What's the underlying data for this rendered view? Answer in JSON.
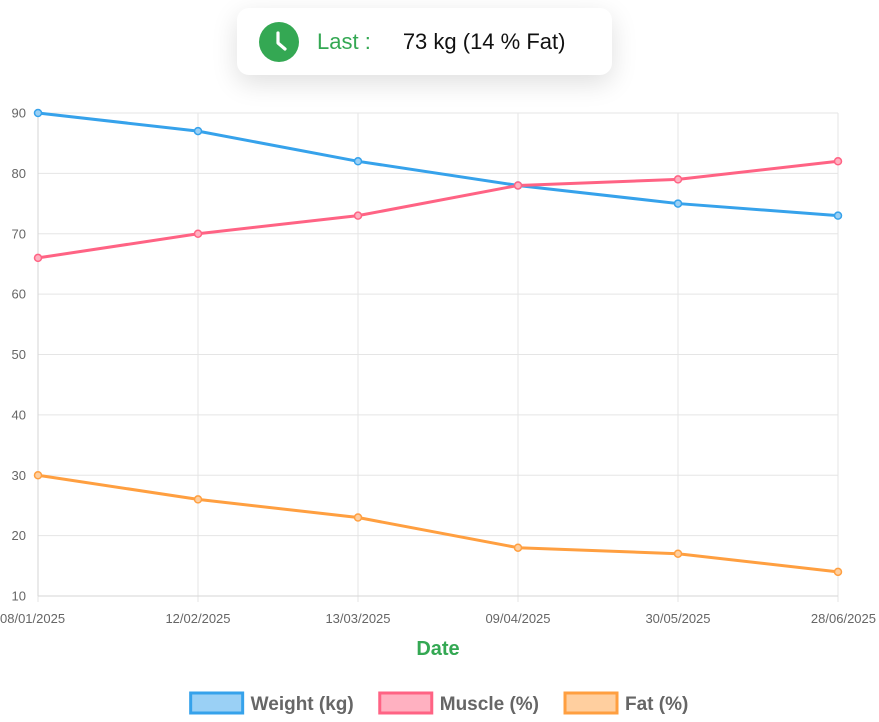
{
  "summary": {
    "label": "Last :",
    "value": "73 kg (14 % Fat)",
    "icon": "clock-icon",
    "accent": "#34a853"
  },
  "chart_data": {
    "type": "line",
    "title": "",
    "xlabel": "Date",
    "ylabel": "",
    "categories": [
      "08/01/2025",
      "12/02/2025",
      "13/03/2025",
      "09/04/2025",
      "30/05/2025",
      "28/06/2025"
    ],
    "ylim": [
      10,
      90
    ],
    "yticks": [
      10,
      20,
      30,
      40,
      50,
      60,
      70,
      80,
      90
    ],
    "grid": true,
    "legend_position": "bottom",
    "series": [
      {
        "name": "Weight (kg)",
        "values": [
          90,
          87,
          82,
          78,
          75,
          73
        ],
        "color": "#36a2eb",
        "fill": "#9ad0f5"
      },
      {
        "name": "Muscle (%)",
        "values": [
          66,
          70,
          73,
          78,
          79,
          82
        ],
        "color": "#ff6384",
        "fill": "#ffb1c1"
      },
      {
        "name": "Fat (%)",
        "values": [
          30,
          26,
          23,
          18,
          17,
          14
        ],
        "color": "#ff9f40",
        "fill": "#ffcf9f"
      }
    ]
  }
}
